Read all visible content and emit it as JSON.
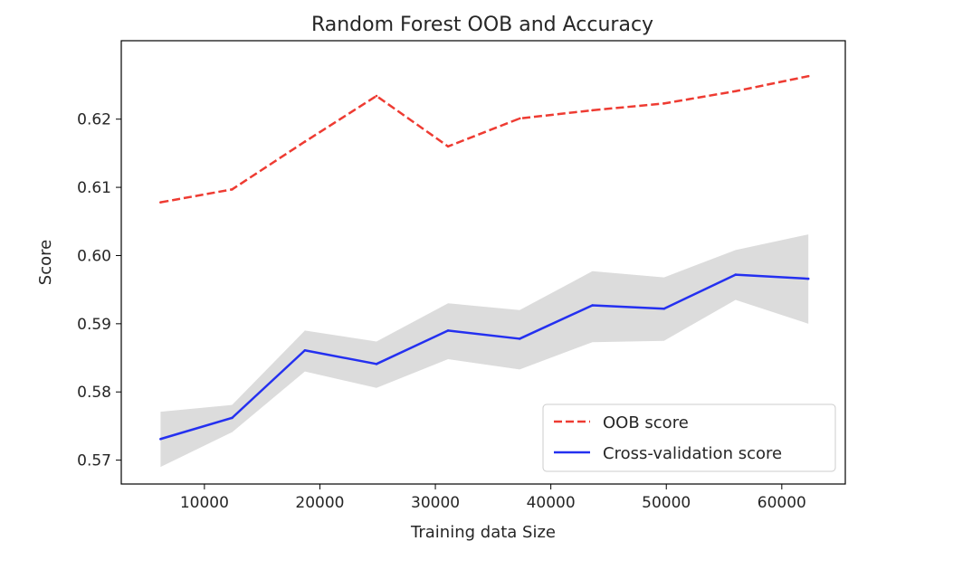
{
  "chart_data": {
    "type": "line",
    "title": "Random Forest OOB and Accuracy",
    "xlabel": "Training data Size",
    "ylabel": "Score",
    "xlim": [
      2800,
      65500
    ],
    "ylim": [
      0.5665,
      0.6315
    ],
    "xticks": [
      10000,
      20000,
      30000,
      40000,
      50000,
      60000
    ],
    "xtick_labels": [
      "10000",
      "20000",
      "30000",
      "40000",
      "50000",
      "60000"
    ],
    "yticks": [
      0.57,
      0.58,
      0.59,
      0.6,
      0.61,
      0.62
    ],
    "ytick_labels": [
      "0.57",
      "0.58",
      "0.59",
      "0.60",
      "0.61",
      "0.62"
    ],
    "grid": false,
    "legend_position": "lower-right",
    "x": [
      6200,
      12400,
      18700,
      24900,
      31100,
      37300,
      43600,
      49800,
      56000,
      62300
    ],
    "series": [
      {
        "name": "OOB score",
        "style": "dashed",
        "color": "#ee3b32",
        "values": [
          0.6078,
          0.6097,
          0.6167,
          0.6234,
          0.616,
          0.6201,
          0.6213,
          0.6223,
          0.6241,
          0.6263
        ]
      },
      {
        "name": "Cross-validation score",
        "style": "solid",
        "color": "#2430f0",
        "values": [
          0.5731,
          0.5762,
          0.5861,
          0.5841,
          0.589,
          0.5878,
          0.5927,
          0.5922,
          0.5972,
          0.5966
        ],
        "band_upper": [
          0.5771,
          0.5781,
          0.589,
          0.5874,
          0.593,
          0.592,
          0.5977,
          0.5968,
          0.6008,
          0.6031
        ],
        "band_lower": [
          0.569,
          0.5741,
          0.583,
          0.5806,
          0.5848,
          0.5833,
          0.5873,
          0.5875,
          0.5935,
          0.59
        ],
        "band_color": "#dcdcdc"
      }
    ]
  }
}
